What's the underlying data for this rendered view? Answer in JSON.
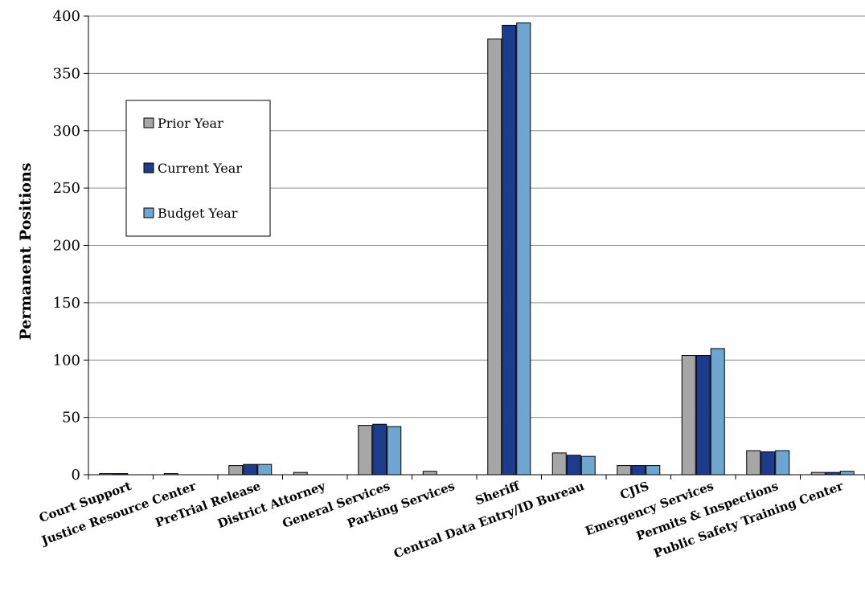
{
  "chart_data": {
    "type": "bar",
    "title": "",
    "xlabel": "",
    "ylabel": "Permanent Positions",
    "ylim": [
      0,
      400
    ],
    "yticks": [
      0,
      50,
      100,
      150,
      200,
      250,
      300,
      350,
      400
    ],
    "grid": true,
    "legend_position": "left",
    "categories": [
      "Court Support",
      "Justice Resource Center",
      "PreTrial Release",
      "District Attorney",
      "General Services",
      "Parking Services",
      "Sheriff",
      "Central Data Entry/ID Bureau",
      "CJIS",
      "Emergency Services",
      "Permits & Inspections",
      "Public Safety Training Center"
    ],
    "series": [
      {
        "name": "Prior Year",
        "color": "#a6a6a6",
        "values": [
          1,
          1,
          8,
          2,
          43,
          3,
          380,
          19,
          8,
          104,
          21,
          2
        ]
      },
      {
        "name": "Current Year",
        "color": "#1f3b8c",
        "values": [
          1,
          0,
          9,
          0,
          44,
          0,
          392,
          17,
          8,
          104,
          20,
          2
        ]
      },
      {
        "name": "Budget Year",
        "color": "#6ea5d1",
        "values": [
          0,
          0,
          9,
          0,
          42,
          0,
          394,
          16,
          8,
          110,
          21,
          3
        ]
      }
    ]
  }
}
